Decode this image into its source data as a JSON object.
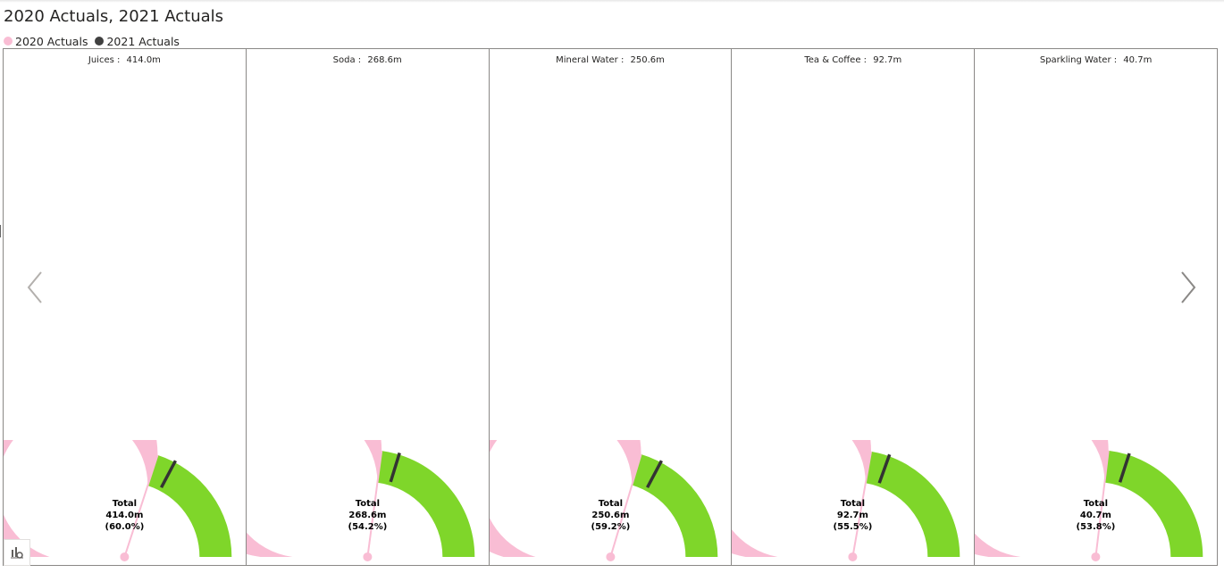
{
  "page": {
    "title": "2020 Actuals, 2021 Actuals"
  },
  "legend": [
    {
      "label": "2020 Actuals",
      "color": "#f9bdd4"
    },
    {
      "label": "2021 Actuals",
      "color": "#404040"
    }
  ],
  "colors": {
    "actual_arc": "#f9bdd4",
    "remaining_arc": "#7fd62a",
    "target_marker": "#333333",
    "needle": "#f9bdd4"
  },
  "chart_data": {
    "type": "gauge",
    "panels": [
      {
        "category": "Juices",
        "value_label": "414.0m",
        "value": 414.0,
        "percent": 0.6,
        "percent_label": "(60.0%)",
        "total_label": "Total",
        "target_fraction": 0.655
      },
      {
        "category": "Soda",
        "value_label": "268.6m",
        "value": 268.6,
        "percent": 0.542,
        "percent_label": "(54.2%)",
        "total_label": "Total",
        "target_fraction": 0.595
      },
      {
        "category": "Mineral Water",
        "value_label": "250.6m",
        "value": 250.6,
        "percent": 0.592,
        "percent_label": "(59.2%)",
        "total_label": "Total",
        "target_fraction": 0.655
      },
      {
        "category": "Tea & Coffee",
        "value_label": "92.7m",
        "value": 92.7,
        "percent": 0.555,
        "percent_label": "(55.5%)",
        "total_label": "Total",
        "target_fraction": 0.61
      },
      {
        "category": "Sparkling Water",
        "value_label": "40.7m",
        "value": 40.7,
        "percent": 0.538,
        "percent_label": "(53.8%)",
        "total_label": "Total",
        "target_fraction": 0.6
      }
    ]
  },
  "navigation": {
    "prev_icon": "chevron-left-icon",
    "next_icon": "chevron-right-icon"
  },
  "corner": {
    "icon": "visual-options-icon"
  }
}
